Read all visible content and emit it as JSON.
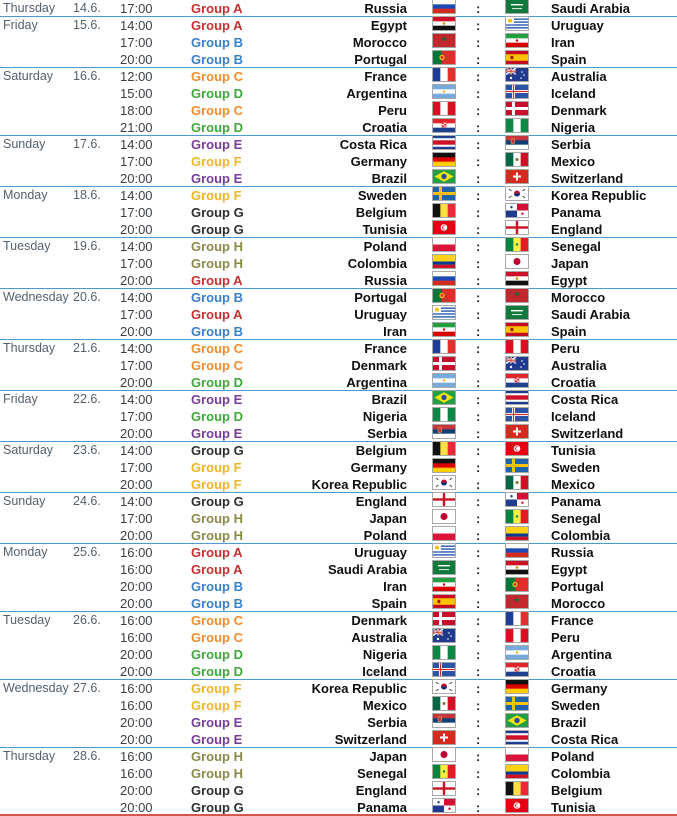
{
  "group_colors": {
    "A": "#c8302f",
    "B": "#3a7fc9",
    "C": "#f08c2f",
    "D": "#3fa83a",
    "E": "#7a3c9a",
    "F": "#f0b428",
    "G": "#2f2f2f",
    "H": "#8a8a48"
  },
  "days": [
    {
      "day": "Thursday",
      "date": "14.6.",
      "matches": [
        {
          "time": "17:00",
          "group": "Group A",
          "g": "A",
          "home": "Russia",
          "home_flag": "russia-flag-icon",
          "away": "Saudi Arabia",
          "away_flag": "saudi-arabia-flag-icon",
          "sep": ":"
        }
      ]
    },
    {
      "day": "Friday",
      "date": "15.6.",
      "matches": [
        {
          "time": "14:00",
          "group": "Group A",
          "g": "A",
          "home": "Egypt",
          "home_flag": "egypt-flag-icon",
          "away": "Uruguay",
          "away_flag": "uruguay-flag-icon",
          "sep": ":"
        },
        {
          "time": "17:00",
          "group": "Group B",
          "g": "B",
          "home": "Morocco",
          "home_flag": "morocco-flag-icon",
          "away": "Iran",
          "away_flag": "iran-flag-icon",
          "sep": ":"
        },
        {
          "time": "20:00",
          "group": "Group B",
          "g": "B",
          "home": "Portugal",
          "home_flag": "portugal-flag-icon",
          "away": "Spain",
          "away_flag": "spain-flag-icon",
          "sep": ":"
        }
      ]
    },
    {
      "day": "Saturday",
      "date": "16.6.",
      "matches": [
        {
          "time": "12:00",
          "group": "Group C",
          "g": "C",
          "home": "France",
          "home_flag": "france-flag-icon",
          "away": "Australia",
          "away_flag": "australia-flag-icon",
          "sep": ":"
        },
        {
          "time": "15:00",
          "group": "Group D",
          "g": "D",
          "home": "Argentina",
          "home_flag": "argentina-flag-icon",
          "away": "Iceland",
          "away_flag": "iceland-flag-icon",
          "sep": ":"
        },
        {
          "time": "18:00",
          "group": "Group C",
          "g": "C",
          "home": "Peru",
          "home_flag": "peru-flag-icon",
          "away": "Denmark",
          "away_flag": "denmark-flag-icon",
          "sep": ":"
        },
        {
          "time": "21:00",
          "group": "Group D",
          "g": "D",
          "home": "Croatia",
          "home_flag": "croatia-flag-icon",
          "away": "Nigeria",
          "away_flag": "nigeria-flag-icon",
          "sep": ":"
        }
      ]
    },
    {
      "day": "Sunday",
      "date": "17.6.",
      "matches": [
        {
          "time": "14:00",
          "group": "Group E",
          "g": "E",
          "home": "Costa Rica",
          "home_flag": "costa-rica-flag-icon",
          "away": "Serbia",
          "away_flag": "serbia-flag-icon",
          "sep": ":"
        },
        {
          "time": "17:00",
          "group": "Group F",
          "g": "F",
          "home": "Germany",
          "home_flag": "germany-flag-icon",
          "away": "Mexico",
          "away_flag": "mexico-flag-icon",
          "sep": ":"
        },
        {
          "time": "20:00",
          "group": "Group E",
          "g": "E",
          "home": "Brazil",
          "home_flag": "brazil-flag-icon",
          "away": "Switzerland",
          "away_flag": "switzerland-flag-icon",
          "sep": ":"
        }
      ]
    },
    {
      "day": "Monday",
      "date": "18.6.",
      "matches": [
        {
          "time": "14:00",
          "group": "Group F",
          "g": "F",
          "home": "Sweden",
          "home_flag": "sweden-flag-icon",
          "away": "Korea Republic",
          "away_flag": "korea-flag-icon",
          "sep": ":"
        },
        {
          "time": "17:00",
          "group": "Group G",
          "g": "G",
          "home": "Belgium",
          "home_flag": "belgium-flag-icon",
          "away": "Panama",
          "away_flag": "panama-flag-icon",
          "sep": ":"
        },
        {
          "time": "20:00",
          "group": "Group G",
          "g": "G",
          "home": "Tunisia",
          "home_flag": "tunisia-flag-icon",
          "away": "England",
          "away_flag": "england-flag-icon",
          "sep": ":"
        }
      ]
    },
    {
      "day": "Tuesday",
      "date": "19.6.",
      "matches": [
        {
          "time": "14:00",
          "group": "Group H",
          "g": "H",
          "home": "Poland",
          "home_flag": "poland-flag-icon",
          "away": "Senegal",
          "away_flag": "senegal-flag-icon",
          "sep": ":"
        },
        {
          "time": "17:00",
          "group": "Group H",
          "g": "H",
          "home": "Colombia",
          "home_flag": "colombia-flag-icon",
          "away": "Japan",
          "away_flag": "japan-flag-icon",
          "sep": ":"
        },
        {
          "time": "20:00",
          "group": "Group A",
          "g": "A",
          "home": "Russia",
          "home_flag": "russia-flag-icon",
          "away": "Egypt",
          "away_flag": "egypt-flag-icon",
          "sep": ":"
        }
      ]
    },
    {
      "day": "Wednesday",
      "date": "20.6.",
      "matches": [
        {
          "time": "14:00",
          "group": "Group B",
          "g": "B",
          "home": "Portugal",
          "home_flag": "portugal-flag-icon",
          "away": "Morocco",
          "away_flag": "morocco-flag-icon",
          "sep": ":"
        },
        {
          "time": "17:00",
          "group": "Group A",
          "g": "A",
          "home": "Uruguay",
          "home_flag": "uruguay-flag-icon",
          "away": "Saudi Arabia",
          "away_flag": "saudi-arabia-flag-icon",
          "sep": ":"
        },
        {
          "time": "20:00",
          "group": "Group B",
          "g": "B",
          "home": "Iran",
          "home_flag": "iran-flag-icon",
          "away": "Spain",
          "away_flag": "spain-flag-icon",
          "sep": ":"
        }
      ]
    },
    {
      "day": "Thursday",
      "date": "21.6.",
      "matches": [
        {
          "time": "14:00",
          "group": "Group C",
          "g": "C",
          "home": "France",
          "home_flag": "france-flag-icon",
          "away": "Peru",
          "away_flag": "peru-flag-icon",
          "sep": ":"
        },
        {
          "time": "17:00",
          "group": "Group C",
          "g": "C",
          "home": "Denmark",
          "home_flag": "denmark-flag-icon",
          "away": "Australia",
          "away_flag": "australia-flag-icon",
          "sep": ":"
        },
        {
          "time": "20:00",
          "group": "Group D",
          "g": "D",
          "home": "Argentina",
          "home_flag": "argentina-flag-icon",
          "away": "Croatia",
          "away_flag": "croatia-flag-icon",
          "sep": ":"
        }
      ]
    },
    {
      "day": "Friday",
      "date": "22.6.",
      "matches": [
        {
          "time": "14:00",
          "group": "Group E",
          "g": "E",
          "home": "Brazil",
          "home_flag": "brazil-flag-icon",
          "away": "Costa Rica",
          "away_flag": "costa-rica-flag-icon",
          "sep": ":"
        },
        {
          "time": "17:00",
          "group": "Group D",
          "g": "D",
          "home": "Nigeria",
          "home_flag": "nigeria-flag-icon",
          "away": "Iceland",
          "away_flag": "iceland-flag-icon",
          "sep": ":"
        },
        {
          "time": "20:00",
          "group": "Group E",
          "g": "E",
          "home": "Serbia",
          "home_flag": "serbia-flag-icon",
          "away": "Switzerland",
          "away_flag": "switzerland-flag-icon",
          "sep": ":"
        }
      ]
    },
    {
      "day": "Saturday",
      "date": "23.6.",
      "matches": [
        {
          "time": "14:00",
          "group": "Group G",
          "g": "G",
          "home": "Belgium",
          "home_flag": "belgium-flag-icon",
          "away": "Tunisia",
          "away_flag": "tunisia-flag-icon",
          "sep": ":"
        },
        {
          "time": "17:00",
          "group": "Group F",
          "g": "F",
          "home": "Germany",
          "home_flag": "germany-flag-icon",
          "away": "Sweden",
          "away_flag": "sweden-flag-icon",
          "sep": ":"
        },
        {
          "time": "20:00",
          "group": "Group F",
          "g": "F",
          "home": "Korea Republic",
          "home_flag": "korea-flag-icon",
          "away": "Mexico",
          "away_flag": "mexico-flag-icon",
          "sep": ":"
        }
      ]
    },
    {
      "day": "Sunday",
      "date": "24.6.",
      "matches": [
        {
          "time": "14:00",
          "group": "Group G",
          "g": "G",
          "home": "England",
          "home_flag": "england-flag-icon",
          "away": "Panama",
          "away_flag": "panama-flag-icon",
          "sep": ":"
        },
        {
          "time": "17:00",
          "group": "Group H",
          "g": "H",
          "home": "Japan",
          "home_flag": "japan-flag-icon",
          "away": "Senegal",
          "away_flag": "senegal-flag-icon",
          "sep": ":"
        },
        {
          "time": "20:00",
          "group": "Group H",
          "g": "H",
          "home": "Poland",
          "home_flag": "poland-flag-icon",
          "away": "Colombia",
          "away_flag": "colombia-flag-icon",
          "sep": ":"
        }
      ]
    },
    {
      "day": "Monday",
      "date": "25.6.",
      "matches": [
        {
          "time": "16:00",
          "group": "Group A",
          "g": "A",
          "home": "Uruguay",
          "home_flag": "uruguay-flag-icon",
          "away": "Russia",
          "away_flag": "russia-flag-icon",
          "sep": ":"
        },
        {
          "time": "16:00",
          "group": "Group A",
          "g": "A",
          "home": "Saudi Arabia",
          "home_flag": "saudi-arabia-flag-icon",
          "away": "Egypt",
          "away_flag": "egypt-flag-icon",
          "sep": ":"
        },
        {
          "time": "20:00",
          "group": "Group B",
          "g": "B",
          "home": "Iran",
          "home_flag": "iran-flag-icon",
          "away": "Portugal",
          "away_flag": "portugal-flag-icon",
          "sep": ":"
        },
        {
          "time": "20:00",
          "group": "Group B",
          "g": "B",
          "home": "Spain",
          "home_flag": "spain-flag-icon",
          "away": "Morocco",
          "away_flag": "morocco-flag-icon",
          "sep": ":"
        }
      ]
    },
    {
      "day": "Tuesday",
      "date": "26.6.",
      "matches": [
        {
          "time": "16:00",
          "group": "Group C",
          "g": "C",
          "home": "Denmark",
          "home_flag": "denmark-flag-icon",
          "away": "France",
          "away_flag": "france-flag-icon",
          "sep": ":"
        },
        {
          "time": "16:00",
          "group": "Group C",
          "g": "C",
          "home": "Australia",
          "home_flag": "australia-flag-icon",
          "away": "Peru",
          "away_flag": "peru-flag-icon",
          "sep": ":"
        },
        {
          "time": "20:00",
          "group": "Group D",
          "g": "D",
          "home": "Nigeria",
          "home_flag": "nigeria-flag-icon",
          "away": "Argentina",
          "away_flag": "argentina-flag-icon",
          "sep": ":"
        },
        {
          "time": "20:00",
          "group": "Group D",
          "g": "D",
          "home": "Iceland",
          "home_flag": "iceland-flag-icon",
          "away": "Croatia",
          "away_flag": "croatia-flag-icon",
          "sep": ":"
        }
      ]
    },
    {
      "day": "Wednesday",
      "date": "27.6.",
      "matches": [
        {
          "time": "16:00",
          "group": "Group F",
          "g": "F",
          "home": "Korea Republic",
          "home_flag": "korea-flag-icon",
          "away": "Germany",
          "away_flag": "germany-flag-icon",
          "sep": ":"
        },
        {
          "time": "16:00",
          "group": "Group F",
          "g": "F",
          "home": "Mexico",
          "home_flag": "mexico-flag-icon",
          "away": "Sweden",
          "away_flag": "sweden-flag-icon",
          "sep": ":"
        },
        {
          "time": "20:00",
          "group": "Group E",
          "g": "E",
          "home": "Serbia",
          "home_flag": "serbia-flag-icon",
          "away": "Brazil",
          "away_flag": "brazil-flag-icon",
          "sep": ":"
        },
        {
          "time": "20:00",
          "group": "Group E",
          "g": "E",
          "home": "Switzerland",
          "home_flag": "switzerland-flag-icon",
          "away": "Costa Rica",
          "away_flag": "costa-rica-flag-icon",
          "sep": ":"
        }
      ]
    },
    {
      "day": "Thursday",
      "date": "28.6.",
      "matches": [
        {
          "time": "16:00",
          "group": "Group H",
          "g": "H",
          "home": "Japan",
          "home_flag": "japan-flag-icon",
          "away": "Poland",
          "away_flag": "poland-flag-icon",
          "sep": ":"
        },
        {
          "time": "16:00",
          "group": "Group H",
          "g": "H",
          "home": "Senegal",
          "home_flag": "senegal-flag-icon",
          "away": "Colombia",
          "away_flag": "colombia-flag-icon",
          "sep": ":"
        },
        {
          "time": "20:00",
          "group": "Group G",
          "g": "G",
          "home": "England",
          "home_flag": "england-flag-icon",
          "away": "Belgium",
          "away_flag": "belgium-flag-icon",
          "sep": ":"
        },
        {
          "time": "20:00",
          "group": "Group G",
          "g": "G",
          "home": "Panama",
          "home_flag": "panama-flag-icon",
          "away": "Tunisia",
          "away_flag": "tunisia-flag-icon",
          "sep": ":"
        }
      ]
    }
  ]
}
